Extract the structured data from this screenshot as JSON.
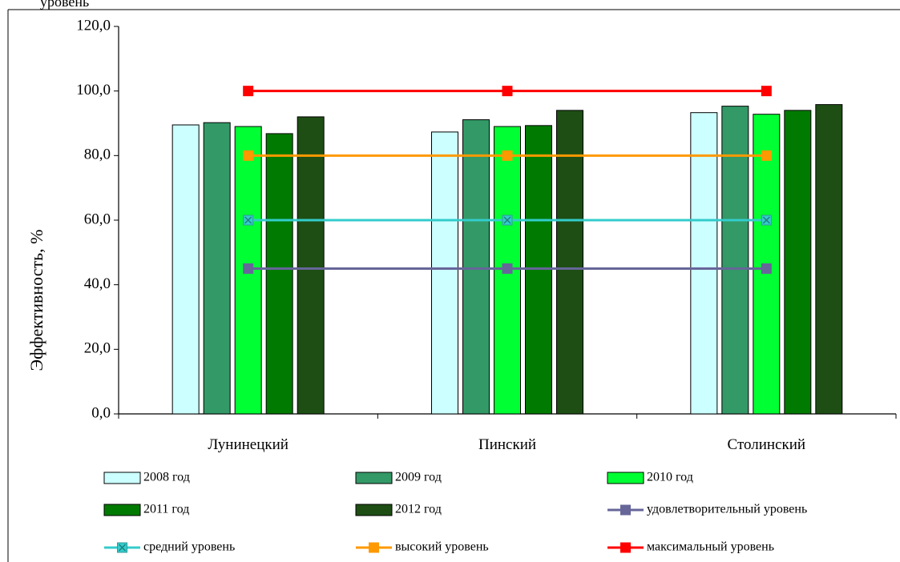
{
  "chart_data": {
    "type": "bar",
    "title": "",
    "ylabel": "Эффективность, %",
    "xlabel": "",
    "ylim": [
      0,
      120
    ],
    "yticks": [
      0,
      20,
      40,
      60,
      80,
      100,
      120
    ],
    "ytick_labels": [
      "0,0",
      "20,0",
      "40,0",
      "60,0",
      "80,0",
      "100,0",
      "120,0"
    ],
    "categories": [
      "Лунинецкий",
      "Пинский",
      "Столинский"
    ],
    "series": [
      {
        "name": "2008 год",
        "kind": "bar",
        "color": "#ccffff",
        "values": [
          89.5,
          87.3,
          93.3
        ]
      },
      {
        "name": "2009 год",
        "kind": "bar",
        "color": "#339966",
        "values": [
          90.2,
          91.1,
          95.3
        ]
      },
      {
        "name": "2010 год",
        "kind": "bar",
        "color": "#00ff33",
        "values": [
          89.0,
          89.0,
          92.8
        ]
      },
      {
        "name": "2011 год",
        "kind": "bar",
        "color": "#007a00",
        "values": [
          86.8,
          89.3,
          94.0
        ]
      },
      {
        "name": "2012 год",
        "kind": "bar",
        "color": "#1e4e14",
        "values": [
          92.0,
          94.0,
          95.8
        ]
      },
      {
        "name": "удовлетворительный уровень",
        "kind": "line",
        "color": "#666699",
        "marker": "square",
        "values": [
          45,
          45,
          45
        ]
      },
      {
        "name": "средний уровень",
        "kind": "line",
        "color": "#33cccc",
        "marker": "x-square",
        "values": [
          60,
          60,
          60
        ]
      },
      {
        "name": "высокий уровень",
        "kind": "line",
        "color": "#ff9900",
        "marker": "square",
        "values": [
          80,
          80,
          80
        ]
      },
      {
        "name": "максимальный уровень",
        "kind": "line",
        "color": "#ff0000",
        "marker": "square",
        "values": [
          100,
          100,
          100
        ]
      }
    ],
    "legend_position": "bottom",
    "header_fragment": "уровень"
  }
}
